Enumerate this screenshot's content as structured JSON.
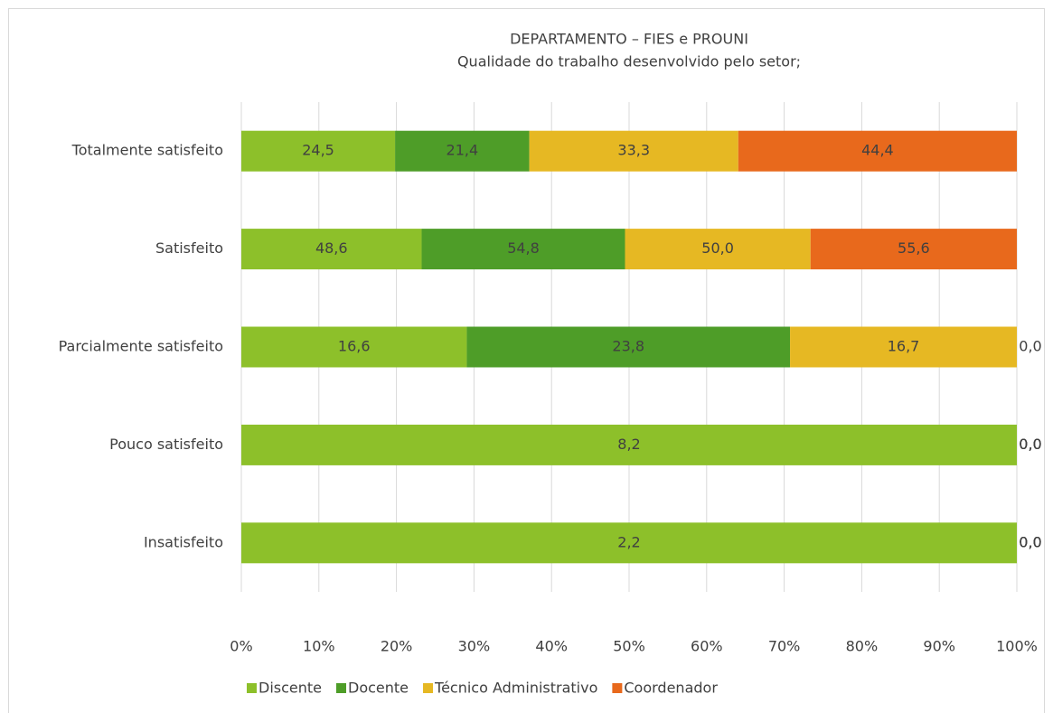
{
  "chart_data": {
    "type": "bar",
    "orientation": "horizontal",
    "stacked": "percent",
    "title": "DEPARTAMENTO – FIES e PROUNI",
    "subtitle": "Qualidade do trabalho desenvolvido pelo setor;",
    "categories": [
      "Totalmente satisfeito",
      "Satisfeito",
      "Parcialmente satisfeito",
      "Pouco satisfeito",
      "Insatisfeito"
    ],
    "series": [
      {
        "name": "Discente",
        "color": "#8dc02a",
        "values": [
          24.5,
          48.6,
          16.6,
          8.2,
          2.2
        ],
        "value_labels": [
          "24,5",
          "48,6",
          "16,6",
          "8,2",
          "2,2"
        ]
      },
      {
        "name": "Docente",
        "color": "#4e9d28",
        "values": [
          21.4,
          54.8,
          23.8,
          0,
          0
        ],
        "value_labels": [
          "21,4",
          "54,8",
          "23,8",
          "0,0",
          "0,0"
        ]
      },
      {
        "name": "Técnico Administrativo",
        "color": "#e6b823",
        "values": [
          33.3,
          50.0,
          16.7,
          0,
          0
        ],
        "value_labels": [
          "33,3",
          "50,0",
          "16,7",
          "0,0",
          "0,0"
        ]
      },
      {
        "name": "Coordenador",
        "color": "#e8691c",
        "values": [
          44.4,
          55.6,
          0,
          0,
          0
        ],
        "value_labels": [
          "44,4",
          "55,6",
          "0,0",
          "0,0",
          "0,0"
        ]
      }
    ],
    "xlim": [
      0,
      100
    ],
    "xticks": [
      {
        "value": 0,
        "label": "0%"
      },
      {
        "value": 10,
        "label": "10%"
      },
      {
        "value": 20,
        "label": "20%"
      },
      {
        "value": 30,
        "label": "30%"
      },
      {
        "value": 40,
        "label": "40%"
      },
      {
        "value": 50,
        "label": "50%"
      },
      {
        "value": 60,
        "label": "60%"
      },
      {
        "value": 70,
        "label": "70%"
      },
      {
        "value": 80,
        "label": "80%"
      },
      {
        "value": 90,
        "label": "90%"
      },
      {
        "value": 100,
        "label": "100%"
      }
    ],
    "grid": true,
    "legend": "bottom"
  }
}
